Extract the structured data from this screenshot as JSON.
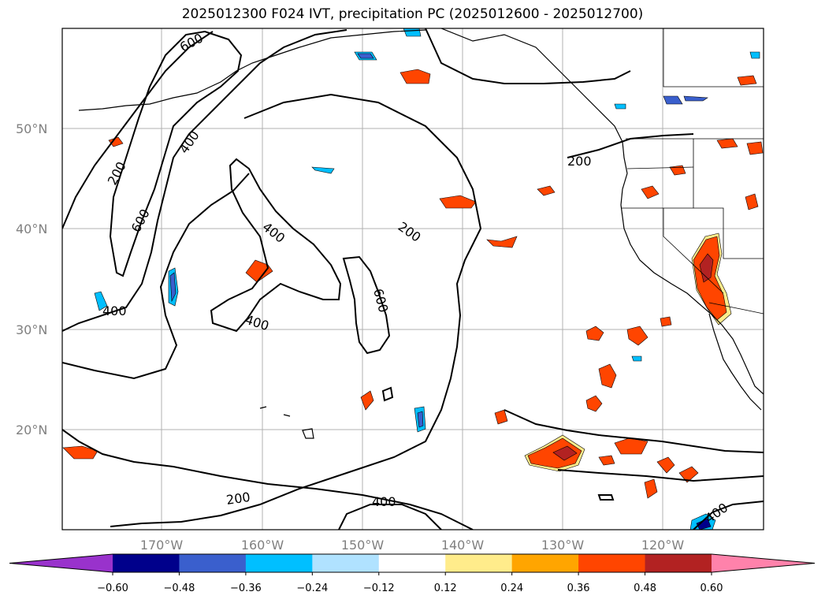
{
  "title": "2025012300 F024 IVT, precipitation PC (2025012600 - 2025012700)",
  "lat_labels": [
    "50°N",
    "40°N",
    "30°N",
    "20°N"
  ],
  "lon_labels": [
    "170°W",
    "160°W",
    "150°W",
    "140°W",
    "130°W",
    "120°W"
  ],
  "contour_labels": [
    "600",
    "400",
    "200",
    "600",
    "400",
    "400",
    "400",
    "200",
    "600",
    "200",
    "200",
    "400",
    "400"
  ],
  "colorbar": {
    "colors": [
      "#9932cc",
      "#00008b",
      "#3a5fcd",
      "#00bfff",
      "#b0e2ff",
      "#ffffff",
      "#ffec8b",
      "#ffa500",
      "#ff4500",
      "#b22222",
      "#ff82ab"
    ],
    "ticks": [
      "−0.60",
      "−0.48",
      "−0.36",
      "−0.24",
      "−0.12",
      "0.12",
      "0.24",
      "0.36",
      "0.48",
      "0.60"
    ]
  }
}
